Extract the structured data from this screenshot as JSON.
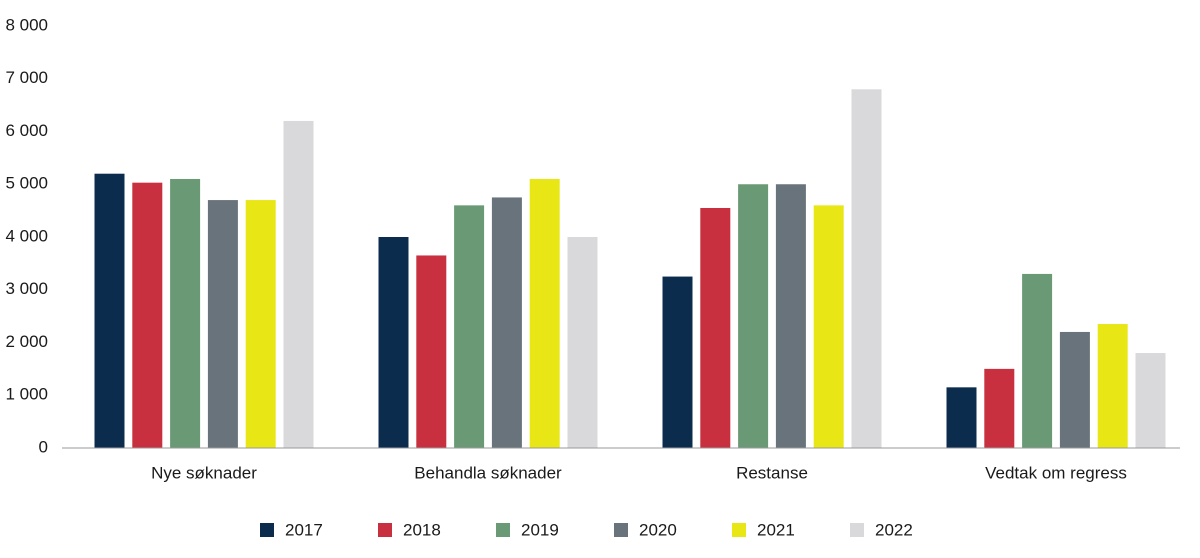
{
  "chart_data": {
    "type": "bar",
    "categories": [
      "Nye søknader",
      "Behandla søknader",
      "Restanse",
      "Vedtak om regress"
    ],
    "series": [
      {
        "name": "2017",
        "color": "#0c2c4e",
        "values": [
          5200,
          4000,
          3250,
          1150
        ]
      },
      {
        "name": "2018",
        "color": "#c8303f",
        "values": [
          5030,
          3650,
          4550,
          1500
        ]
      },
      {
        "name": "2019",
        "color": "#6a9a75",
        "values": [
          5100,
          4600,
          5000,
          3300
        ]
      },
      {
        "name": "2020",
        "color": "#69737b",
        "values": [
          4700,
          4750,
          5000,
          2200
        ]
      },
      {
        "name": "2021",
        "color": "#e8e615",
        "values": [
          4700,
          5100,
          4600,
          2350
        ]
      },
      {
        "name": "2022",
        "color": "#d9d9db",
        "values": [
          6200,
          4000,
          6800,
          1800
        ]
      }
    ],
    "ylim": [
      0,
      8000
    ],
    "yticks": [
      0,
      {
        "value": 1000,
        "label": "1 000"
      },
      {
        "value": 2000,
        "label": "2 000"
      },
      {
        "value": 3000,
        "label": "3 000"
      },
      {
        "value": 4000,
        "label": "4 000"
      },
      {
        "value": 5000,
        "label": "5 000"
      },
      {
        "value": 6000,
        "label": "6 000"
      },
      {
        "value": 7000,
        "label": "7 000"
      },
      {
        "value": 8000,
        "label": "8 000"
      }
    ],
    "grid": false,
    "legend": "bottom"
  }
}
